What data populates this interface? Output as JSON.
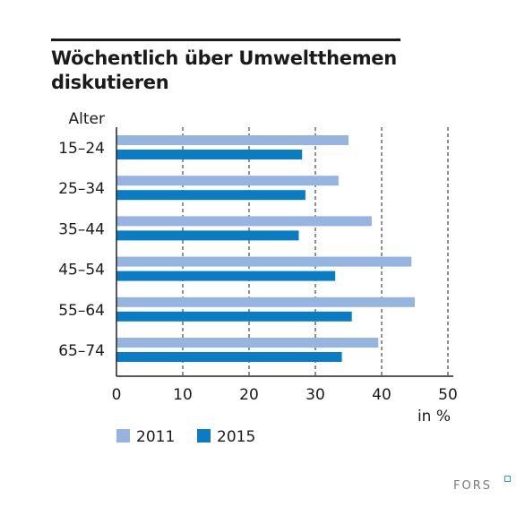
{
  "chart_data": {
    "type": "bar",
    "orientation": "horizontal",
    "title_lines": [
      "Wöchentlich über Umweltthemen",
      "diskutieren"
    ],
    "category_axis_label": "Alter",
    "categories": [
      "15–24",
      "25–34",
      "35–44",
      "45–54",
      "55–64",
      "65–74"
    ],
    "series": [
      {
        "name": "2011",
        "color": "#95b4df",
        "values": [
          35,
          33.5,
          38.5,
          44.5,
          45,
          39.5
        ]
      },
      {
        "name": "2015",
        "color": "#0a7cc4",
        "values": [
          28,
          28.5,
          27.5,
          33,
          35.5,
          34
        ]
      }
    ],
    "xlim": [
      0,
      50
    ],
    "xticks": [
      0,
      10,
      20,
      30,
      40,
      50
    ],
    "tick_labels": [
      "0",
      "10",
      "20",
      "30",
      "40",
      "50"
    ],
    "xlabel": "in %",
    "grid": "vertical dashed",
    "legend_position": "bottom-left"
  },
  "logo": {
    "text": "FORS"
  }
}
